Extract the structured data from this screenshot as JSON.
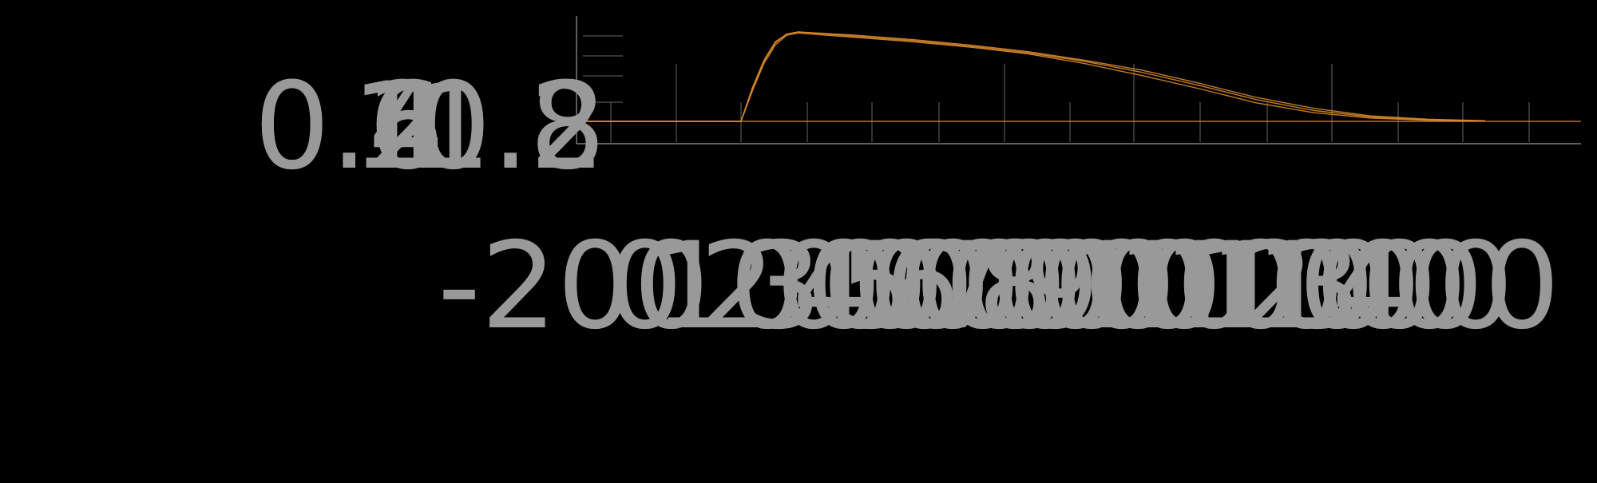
{
  "theme": {
    "background": "#000000",
    "axis_color": "#999999",
    "grid_color": "#666666",
    "tick_label_color": "#999999",
    "series_color": "#d98a2b"
  },
  "chart_data": {
    "type": "line",
    "title": "",
    "xlabel": "",
    "ylabel": "",
    "xlim": [
      -200,
      1400
    ],
    "ylim": [
      0,
      1
    ],
    "grid": true,
    "legend": "none",
    "x_ticks": [
      "-200",
      "0",
      "100",
      "200",
      "300",
      "400",
      "500",
      "600",
      "700",
      "800",
      "900",
      "1000",
      "1100",
      "1200",
      "1300",
      "1400"
    ],
    "y_ticks": [
      "0",
      "0.2",
      "0.4",
      "0.6",
      "0.8",
      "1",
      "1.2"
    ],
    "series": [
      {
        "x": [
          -200,
          0,
          20,
          40,
          60,
          80,
          100,
          200,
          300,
          400,
          500,
          600,
          700,
          800,
          900,
          1000,
          1100,
          1200,
          1300
        ],
        "values": [
          0,
          0,
          0.3,
          0.55,
          0.72,
          0.8,
          0.82,
          0.78,
          0.74,
          0.69,
          0.63,
          0.55,
          0.45,
          0.33,
          0.2,
          0.1,
          0.04,
          0.015,
          0.005
        ]
      },
      {
        "x": [
          -200,
          0,
          20,
          40,
          60,
          80,
          100,
          200,
          300,
          400,
          500,
          600,
          700,
          800,
          900,
          1000,
          1100,
          1200,
          1300
        ],
        "values": [
          0,
          0,
          0.28,
          0.53,
          0.7,
          0.79,
          0.81,
          0.77,
          0.73,
          0.68,
          0.62,
          0.53,
          0.42,
          0.3,
          0.17,
          0.08,
          0.03,
          0.01,
          0.004
        ]
      },
      {
        "x": [
          -200,
          0,
          20,
          40,
          60,
          80,
          100,
          200,
          300,
          400,
          500,
          600,
          700,
          800,
          900,
          1000,
          1100,
          1200,
          1300
        ],
        "values": [
          0,
          0,
          0.31,
          0.56,
          0.73,
          0.8,
          0.82,
          0.79,
          0.75,
          0.7,
          0.64,
          0.56,
          0.47,
          0.35,
          0.22,
          0.12,
          0.05,
          0.02,
          0.006
        ]
      }
    ]
  }
}
